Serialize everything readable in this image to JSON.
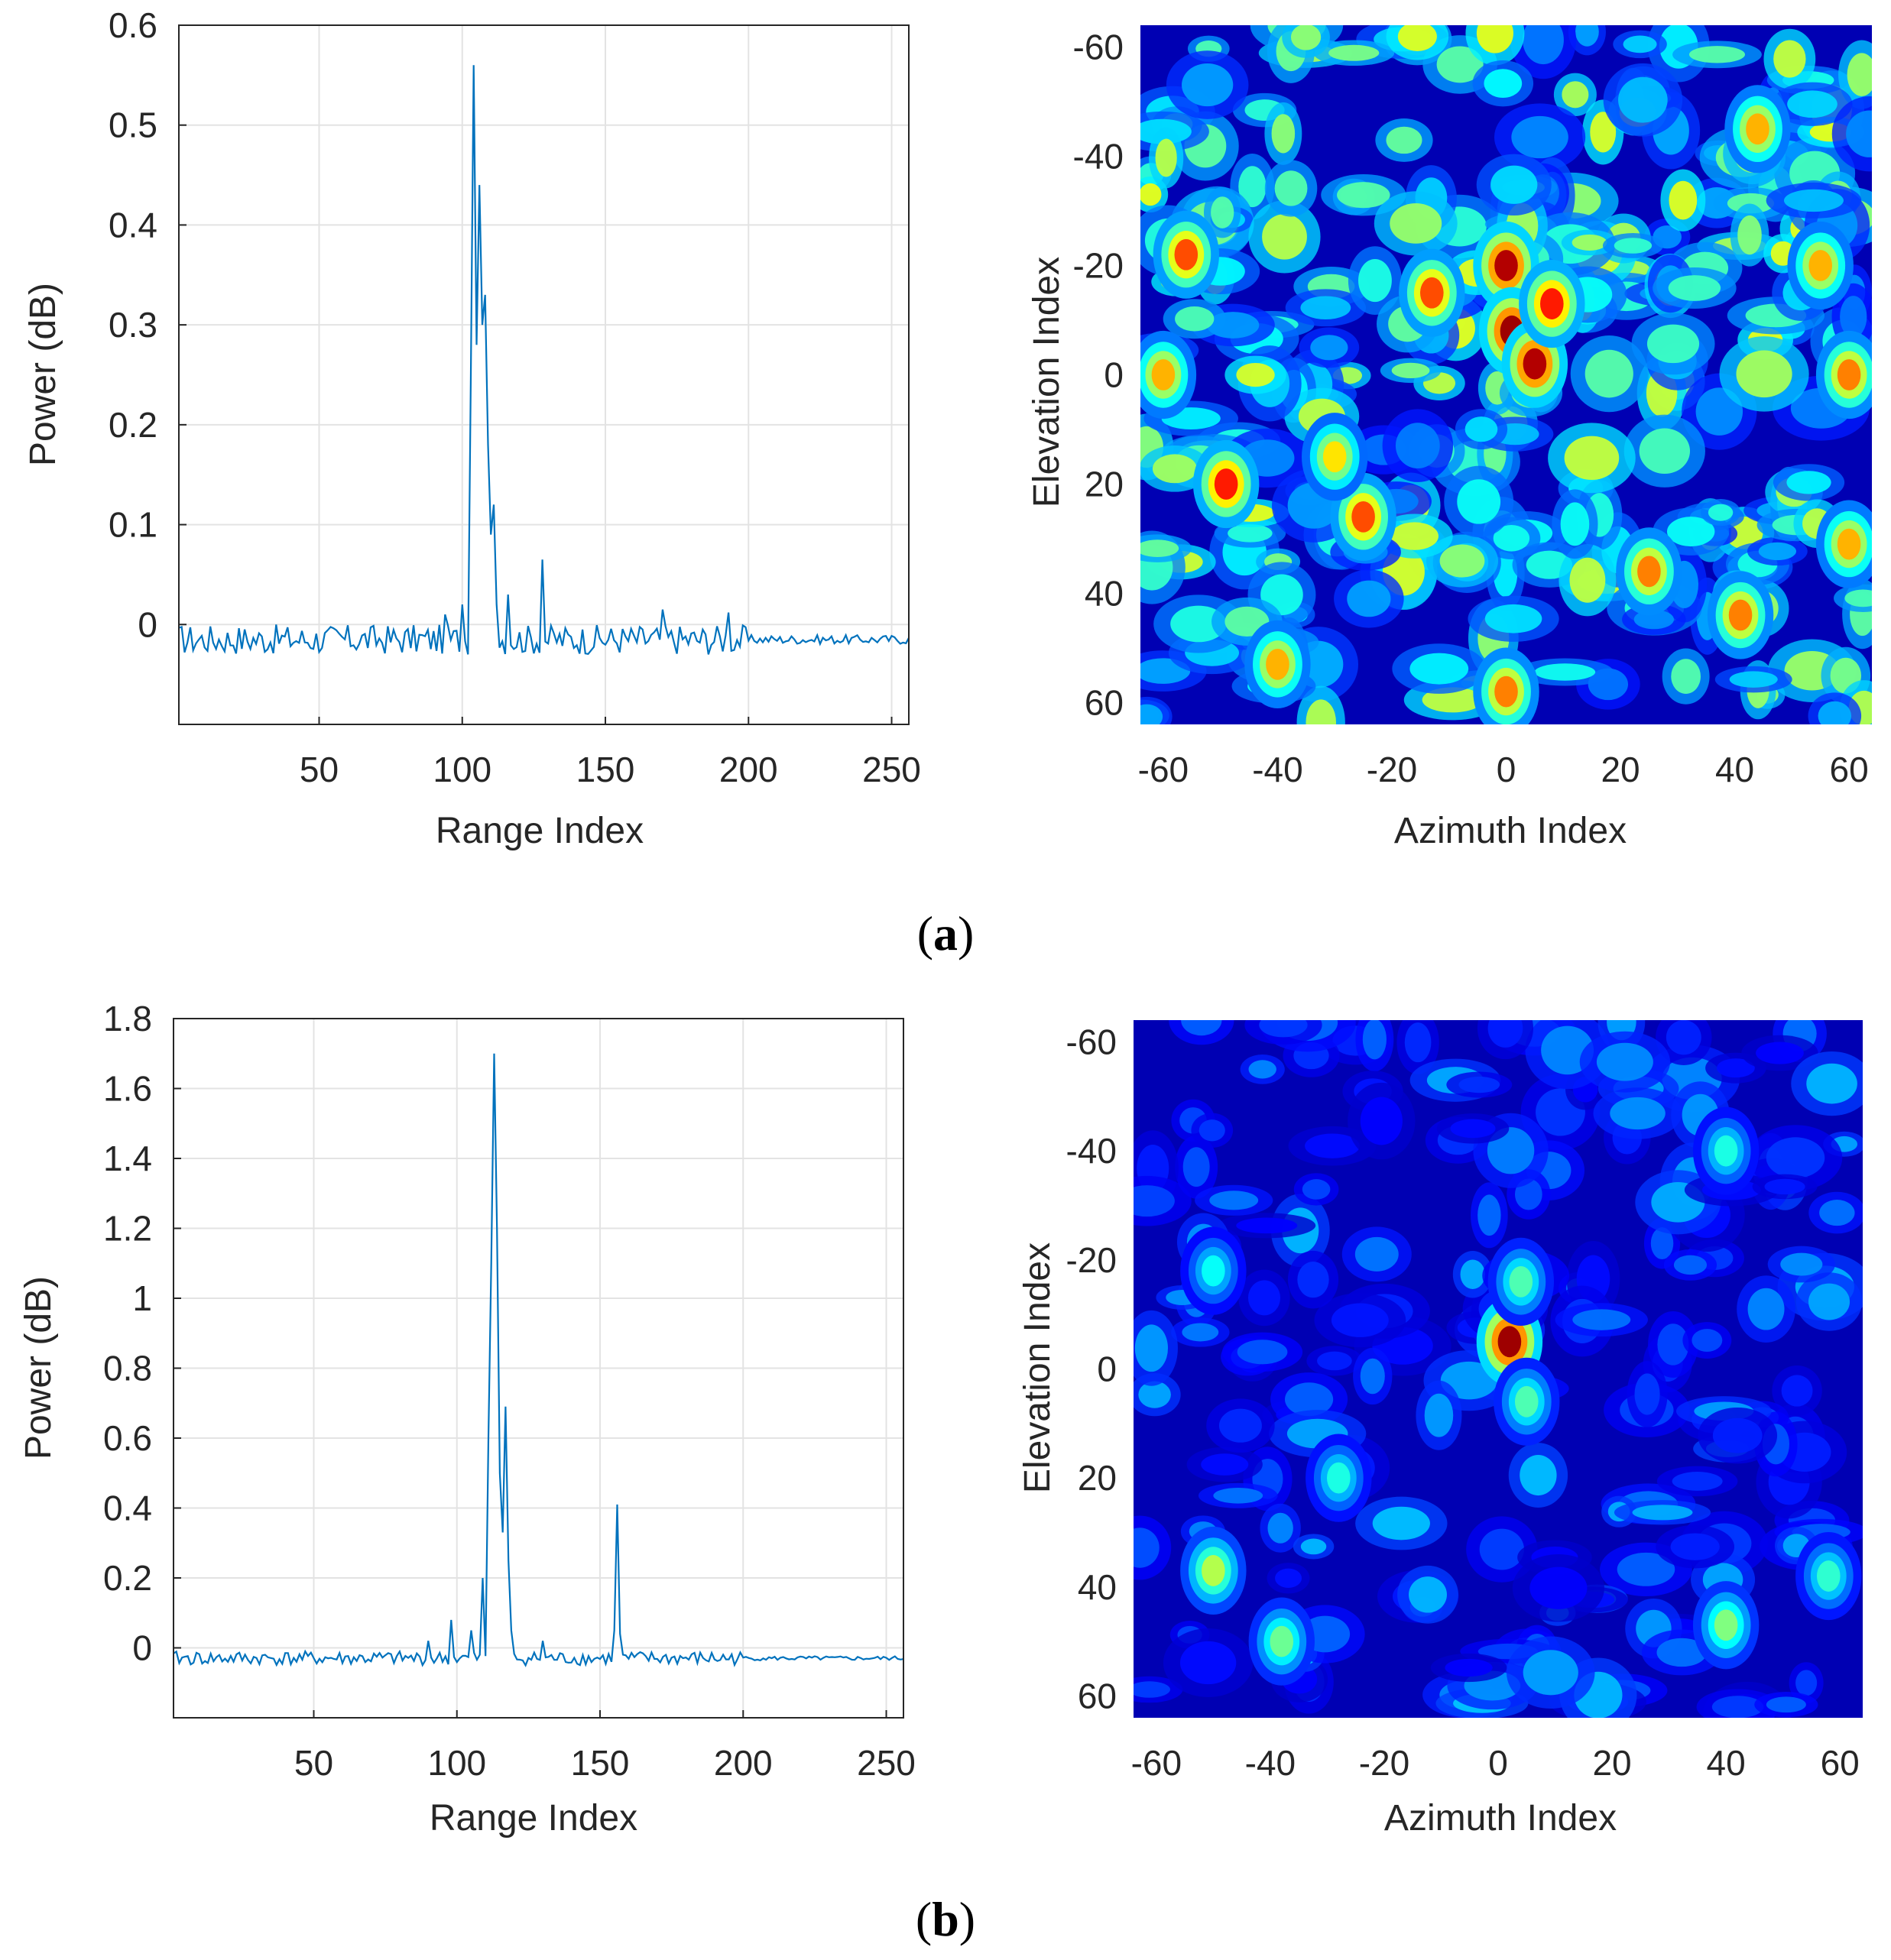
{
  "panels": [
    {
      "label_open": "(",
      "label_letter": "a",
      "label_close": ")"
    },
    {
      "label_open": "(",
      "label_letter": "b",
      "label_close": ")"
    }
  ],
  "colors": {
    "line": "#0072BD",
    "grid": "#e3e3e3",
    "axis": "#262626",
    "jet_low": "#00008f",
    "jet_high": "#800000"
  },
  "chart_data": [
    {
      "id": "a-range",
      "type": "line",
      "xlabel": "Range Index",
      "ylabel": "Power (dB)",
      "xlim": [
        1,
        256
      ],
      "ylim": [
        -0.1,
        0.6
      ],
      "xticks": [
        50,
        100,
        150,
        200,
        250
      ],
      "xtick_labels": [
        "50",
        "100",
        "150",
        "200",
        "250"
      ],
      "yticks": [
        0,
        0.1,
        0.2,
        0.3,
        0.4,
        0.5,
        0.6
      ],
      "ytick_labels": [
        "0",
        "0.1",
        "0.2",
        "0.3",
        "0.4",
        "0.5",
        "0.6"
      ],
      "grid": true,
      "noise_level": -0.015,
      "noise_amp": 0.015,
      "peaks": [
        {
          "x": 94,
          "y": 0.01
        },
        {
          "x": 100,
          "y": 0.02
        },
        {
          "x": 103,
          "y": 0.25
        },
        {
          "x": 104,
          "y": 0.56
        },
        {
          "x": 105,
          "y": 0.28
        },
        {
          "x": 106,
          "y": 0.44
        },
        {
          "x": 107,
          "y": 0.3
        },
        {
          "x": 108,
          "y": 0.33
        },
        {
          "x": 109,
          "y": 0.18
        },
        {
          "x": 110,
          "y": 0.09
        },
        {
          "x": 111,
          "y": 0.12
        },
        {
          "x": 112,
          "y": 0.02
        },
        {
          "x": 116,
          "y": 0.03
        },
        {
          "x": 128,
          "y": 0.065
        },
        {
          "x": 170,
          "y": 0.015
        },
        {
          "x": 193,
          "y": 0.012
        }
      ]
    },
    {
      "id": "a-heatmap",
      "type": "heatmap",
      "xlabel": "Azimuth Index",
      "ylabel": "Elevation Index",
      "xlim": [
        -64,
        64
      ],
      "ylim": [
        -64,
        64
      ],
      "y_reversed": true,
      "xticks": [
        -60,
        -40,
        -20,
        0,
        20,
        40,
        60
      ],
      "xtick_labels": [
        "-60",
        "-40",
        "-20",
        "0",
        "20",
        "40",
        "60"
      ],
      "yticks": [
        -60,
        -40,
        -20,
        0,
        20,
        40,
        60
      ],
      "ytick_labels": [
        "-60",
        "-40",
        "-20",
        "0",
        "20",
        "40",
        "60"
      ],
      "colormap": "jet",
      "background_level": 0.42,
      "hotspots": [
        {
          "x": 0,
          "y": -20,
          "v": 0.95
        },
        {
          "x": 1,
          "y": -8,
          "v": 0.97
        },
        {
          "x": 5,
          "y": -2,
          "v": 0.95
        },
        {
          "x": 8,
          "y": -13,
          "v": 0.85
        },
        {
          "x": -49,
          "y": 20,
          "v": 0.85
        },
        {
          "x": -56,
          "y": -22,
          "v": 0.8
        },
        {
          "x": -25,
          "y": 26,
          "v": 0.8
        },
        {
          "x": -13,
          "y": -15,
          "v": 0.8
        },
        {
          "x": 25,
          "y": 36,
          "v": 0.75
        },
        {
          "x": 41,
          "y": 44,
          "v": 0.75
        },
        {
          "x": -40,
          "y": 53,
          "v": 0.7
        },
        {
          "x": 0,
          "y": 58,
          "v": 0.75
        },
        {
          "x": 60,
          "y": 0,
          "v": 0.75
        },
        {
          "x": 44,
          "y": -45,
          "v": 0.7
        },
        {
          "x": 60,
          "y": 31,
          "v": 0.7
        },
        {
          "x": -60,
          "y": 0,
          "v": 0.7
        },
        {
          "x": -30,
          "y": 15,
          "v": 0.65
        },
        {
          "x": 55,
          "y": -20,
          "v": 0.7
        }
      ]
    },
    {
      "id": "b-range",
      "type": "line",
      "xlabel": "Range Index",
      "ylabel": "Power (dB)",
      "xlim": [
        1,
        256
      ],
      "ylim": [
        -0.2,
        1.8
      ],
      "xticks": [
        50,
        100,
        150,
        200,
        250
      ],
      "xtick_labels": [
        "50",
        "100",
        "150",
        "200",
        "250"
      ],
      "yticks": [
        0,
        0.2,
        0.4,
        0.6,
        0.8,
        1,
        1.2,
        1.4,
        1.6,
        1.8
      ],
      "ytick_labels": [
        "0",
        "0.2",
        "0.4",
        "0.6",
        "0.8",
        "1",
        "1.2",
        "1.4",
        "1.6",
        "1.8"
      ],
      "grid": true,
      "noise_level": -0.03,
      "noise_amp": 0.02,
      "peaks": [
        {
          "x": 90,
          "y": 0.02
        },
        {
          "x": 98,
          "y": 0.08
        },
        {
          "x": 105,
          "y": 0.05
        },
        {
          "x": 109,
          "y": 0.2
        },
        {
          "x": 111,
          "y": 0.6
        },
        {
          "x": 112,
          "y": 1.1
        },
        {
          "x": 113,
          "y": 1.7
        },
        {
          "x": 114,
          "y": 1.2
        },
        {
          "x": 115,
          "y": 0.5
        },
        {
          "x": 116,
          "y": 0.33
        },
        {
          "x": 117,
          "y": 0.69
        },
        {
          "x": 118,
          "y": 0.25
        },
        {
          "x": 119,
          "y": 0.05
        },
        {
          "x": 130,
          "y": 0.02
        },
        {
          "x": 155,
          "y": 0.05
        },
        {
          "x": 156,
          "y": 0.41
        },
        {
          "x": 157,
          "y": 0.04
        }
      ]
    },
    {
      "id": "b-heatmap",
      "type": "heatmap",
      "xlabel": "Azimuth Index",
      "ylabel": "Elevation Index",
      "xlim": [
        -64,
        64
      ],
      "ylim": [
        -64,
        64
      ],
      "y_reversed": true,
      "xticks": [
        -60,
        -40,
        -20,
        0,
        20,
        40,
        60
      ],
      "xtick_labels": [
        "-60",
        "-40",
        "-20",
        "0",
        "20",
        "40",
        "60"
      ],
      "yticks": [
        -60,
        -40,
        -20,
        0,
        20,
        40,
        60
      ],
      "ytick_labels": [
        "-60",
        "-40",
        "-20",
        "0",
        "20",
        "40",
        "60"
      ],
      "colormap": "jet",
      "background_level": 0.22,
      "hotspots": [
        {
          "x": 2,
          "y": -5,
          "v": 0.97
        },
        {
          "x": -50,
          "y": 37,
          "v": 0.55
        },
        {
          "x": 40,
          "y": 47,
          "v": 0.5
        },
        {
          "x": -38,
          "y": 50,
          "v": 0.48
        },
        {
          "x": 4,
          "y": -16,
          "v": 0.45
        },
        {
          "x": 58,
          "y": 38,
          "v": 0.42
        },
        {
          "x": -28,
          "y": 20,
          "v": 0.4
        },
        {
          "x": 40,
          "y": -40,
          "v": 0.4
        },
        {
          "x": -50,
          "y": -18,
          "v": 0.38
        },
        {
          "x": 5,
          "y": 6,
          "v": 0.45
        }
      ]
    }
  ]
}
